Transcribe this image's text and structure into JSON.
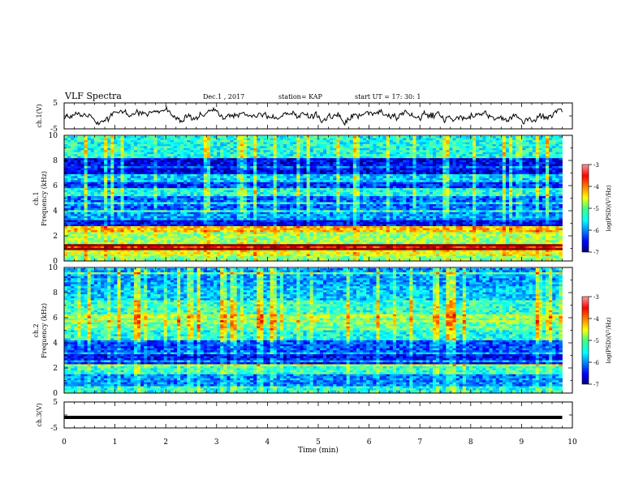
{
  "header": {
    "title": "VLF Spectra",
    "date": "Dec.1  , 2017",
    "station": "station= KAP",
    "start": "start  UT  =   17: 30: 1"
  },
  "chart_data": [
    {
      "type": "line",
      "name": "ch1-voltage",
      "ylabel": "ch.1(V)",
      "ylim": [
        -5,
        5
      ],
      "yticks": [
        "5",
        "-5"
      ],
      "xlim": [
        0,
        10
      ],
      "trace_shape": "noisy waveform roughly between -3 and +3 V",
      "color": "#000000"
    },
    {
      "type": "heatmap",
      "name": "ch1-spectrogram",
      "ylabel": "ch.1\nFrequency (kHz)",
      "ylim": [
        0,
        10
      ],
      "yticks": [
        "0",
        "2",
        "4",
        "6",
        "8",
        "10"
      ],
      "xlim": [
        0,
        9.8
      ],
      "colorbar": {
        "label": "log(PSD)(V²/Hz)",
        "range": [
          -7,
          -3
        ],
        "ticks": [
          "-3",
          "-4",
          "-5",
          "-6",
          "-7"
        ]
      },
      "bands": [
        {
          "f": [
            0.0,
            0.4
          ],
          "level": -5.0
        },
        {
          "f": [
            0.4,
            0.8
          ],
          "level": -4.6
        },
        {
          "f": [
            0.8,
            1.3
          ],
          "level": -3.6
        },
        {
          "f": [
            1.3,
            2.2
          ],
          "level": -4.9
        },
        {
          "f": [
            2.2,
            2.7
          ],
          "level": -4.3
        },
        {
          "f": [
            2.7,
            3.3
          ],
          "level": -6.5
        },
        {
          "f": [
            3.3,
            4.0
          ],
          "level": -5.9
        },
        {
          "f": [
            4.0,
            5.2
          ],
          "level": -6.1
        },
        {
          "f": [
            5.2,
            5.8
          ],
          "level": -5.4
        },
        {
          "f": [
            5.8,
            6.3
          ],
          "level": -6.3
        },
        {
          "f": [
            6.3,
            7.0
          ],
          "level": -5.7
        },
        {
          "f": [
            7.0,
            8.2
          ],
          "level": -6.6
        },
        {
          "f": [
            8.2,
            10.0
          ],
          "level": -5.4
        }
      ]
    },
    {
      "type": "heatmap",
      "name": "ch2-spectrogram",
      "ylabel": "ch.2\nFrequency (kHz)",
      "ylim": [
        0,
        10
      ],
      "yticks": [
        "0",
        "2",
        "4",
        "6",
        "8",
        "10"
      ],
      "xlim": [
        0,
        9.8
      ],
      "colorbar": {
        "label": "log(PSD)(V²/Hz)",
        "range": [
          -7,
          -3
        ],
        "ticks": [
          "-3",
          "-4",
          "-5",
          "-6",
          "-7"
        ]
      },
      "bands": [
        {
          "f": [
            0.0,
            0.5
          ],
          "level": -5.4
        },
        {
          "f": [
            0.5,
            1.5
          ],
          "level": -6.0
        },
        {
          "f": [
            1.5,
            2.3
          ],
          "level": -5.3
        },
        {
          "f": [
            2.3,
            3.2
          ],
          "level": -6.5
        },
        {
          "f": [
            3.2,
            4.2
          ],
          "level": -6.2
        },
        {
          "f": [
            4.2,
            5.0
          ],
          "level": -5.4
        },
        {
          "f": [
            5.0,
            6.0
          ],
          "level": -5.1
        },
        {
          "f": [
            6.0,
            6.3
          ],
          "level": -4.8
        },
        {
          "f": [
            6.3,
            7.5
          ],
          "level": -5.3
        },
        {
          "f": [
            7.5,
            8.5
          ],
          "level": -5.7
        },
        {
          "f": [
            8.5,
            10.0
          ],
          "level": -5.9
        }
      ]
    },
    {
      "type": "line",
      "name": "ch3-voltage",
      "ylabel": "ch.3(V)",
      "ylim": [
        -5,
        5
      ],
      "yticks": [
        "5",
        "-5"
      ],
      "xlim": [
        0,
        10
      ],
      "x": [
        0,
        9.8
      ],
      "y": [
        -1,
        -1
      ],
      "color": "#000000"
    }
  ],
  "x_axis": {
    "label": "Time  (min)",
    "ticks": [
      "0",
      "1",
      "2",
      "3",
      "4",
      "5",
      "6",
      "7",
      "8",
      "9",
      "10"
    ],
    "range": [
      0,
      10
    ]
  }
}
